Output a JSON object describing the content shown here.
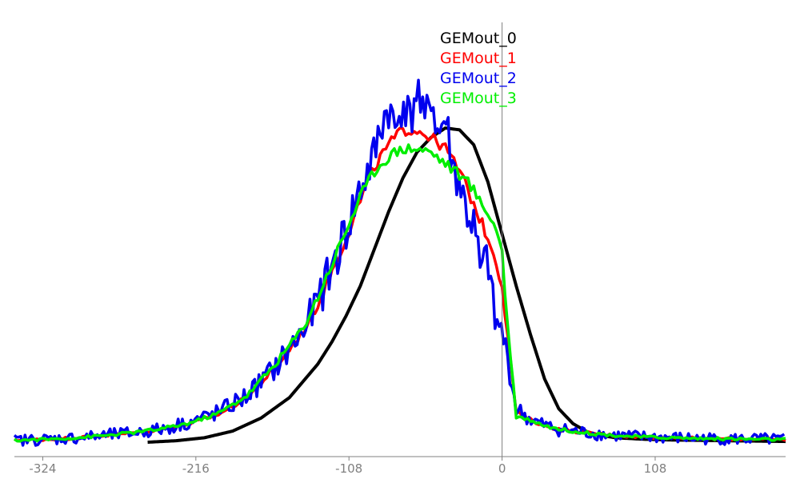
{
  "chart_data": {
    "type": "line",
    "title": "",
    "xlabel": "",
    "ylabel": "",
    "xlim": [
      -344,
      200
    ],
    "ylim": [
      0,
      1.0
    ],
    "x_ticks": [
      -324,
      -216,
      -108,
      0,
      108
    ],
    "x_tick_labels": [
      "-324",
      "-216",
      "-108",
      "0",
      "108"
    ],
    "grid": false,
    "legend_position": "top-center",
    "axis_colors": {
      "bottom_axis": "#808080",
      "zero_line": "#808080"
    },
    "series": [
      {
        "name": "GEMout_0",
        "color": "#000000",
        "x": [
          -250,
          -230,
          -210,
          -190,
          -170,
          -150,
          -130,
          -120,
          -110,
          -100,
          -90,
          -80,
          -70,
          -60,
          -50,
          -40,
          -30,
          -20,
          -10,
          0,
          10,
          20,
          30,
          40,
          50,
          60,
          70,
          80,
          100,
          120,
          140,
          160,
          180,
          200
        ],
        "y": [
          0.0,
          0.004,
          0.012,
          0.03,
          0.065,
          0.12,
          0.21,
          0.27,
          0.34,
          0.42,
          0.52,
          0.62,
          0.71,
          0.78,
          0.82,
          0.845,
          0.84,
          0.8,
          0.7,
          0.56,
          0.42,
          0.29,
          0.17,
          0.09,
          0.05,
          0.028,
          0.018,
          0.012,
          0.008,
          0.006,
          0.005,
          0.004,
          0.003,
          0.002
        ]
      },
      {
        "name": "GEMout_1",
        "color": "#ff0000",
        "x": [
          -344,
          -320,
          -300,
          -280,
          -260,
          -240,
          -220,
          -200,
          -180,
          -160,
          -140,
          -130,
          -120,
          -110,
          -100,
          -90,
          -80,
          -70,
          -60,
          -50,
          -40,
          -30,
          -20,
          -10,
          -5,
          0,
          5,
          10,
          20,
          30,
          40,
          60,
          80,
          100,
          140,
          180,
          200
        ],
        "y": [
          0.005,
          0.008,
          0.012,
          0.018,
          0.025,
          0.035,
          0.05,
          0.075,
          0.12,
          0.2,
          0.3,
          0.37,
          0.46,
          0.55,
          0.65,
          0.74,
          0.8,
          0.84,
          0.84,
          0.82,
          0.79,
          0.73,
          0.64,
          0.55,
          0.5,
          0.42,
          0.25,
          0.08,
          0.06,
          0.045,
          0.035,
          0.025,
          0.018,
          0.014,
          0.01,
          0.008,
          0.007
        ]
      },
      {
        "name": "GEMout_2",
        "color": "#0000ee",
        "x": [
          -344,
          -320,
          -300,
          -280,
          -260,
          -240,
          -220,
          -200,
          -180,
          -160,
          -140,
          -130,
          -120,
          -110,
          -100,
          -90,
          -85,
          -80,
          -75,
          -70,
          -65,
          -60,
          -55,
          -50,
          -45,
          -40,
          -35,
          -30,
          -25,
          -20,
          -15,
          -10,
          -5,
          0,
          5,
          10,
          20,
          30,
          40,
          60,
          80,
          100,
          140,
          180,
          200
        ],
        "y": [
          0.005,
          0.008,
          0.012,
          0.018,
          0.025,
          0.035,
          0.055,
          0.08,
          0.125,
          0.2,
          0.3,
          0.38,
          0.47,
          0.57,
          0.68,
          0.77,
          0.86,
          0.9,
          0.83,
          0.93,
          0.86,
          0.96,
          0.84,
          0.94,
          0.82,
          0.88,
          0.74,
          0.7,
          0.62,
          0.58,
          0.45,
          0.5,
          0.32,
          0.3,
          0.2,
          0.09,
          0.06,
          0.045,
          0.035,
          0.025,
          0.018,
          0.014,
          0.01,
          0.008,
          0.007
        ]
      },
      {
        "name": "GEMout_3",
        "color": "#00ee00",
        "x": [
          -344,
          -320,
          -300,
          -280,
          -260,
          -240,
          -220,
          -200,
          -180,
          -160,
          -140,
          -130,
          -120,
          -110,
          -100,
          -90,
          -80,
          -70,
          -60,
          -50,
          -40,
          -30,
          -20,
          -15,
          -10,
          -5,
          0,
          3,
          10,
          20,
          30,
          40,
          60,
          80,
          100,
          140,
          180,
          200
        ],
        "y": [
          0.005,
          0.008,
          0.012,
          0.018,
          0.026,
          0.036,
          0.052,
          0.078,
          0.125,
          0.21,
          0.31,
          0.39,
          0.48,
          0.57,
          0.66,
          0.73,
          0.77,
          0.79,
          0.79,
          0.78,
          0.75,
          0.72,
          0.68,
          0.64,
          0.62,
          0.58,
          0.52,
          0.35,
          0.07,
          0.06,
          0.045,
          0.035,
          0.025,
          0.018,
          0.014,
          0.01,
          0.008,
          0.007
        ]
      }
    ]
  }
}
